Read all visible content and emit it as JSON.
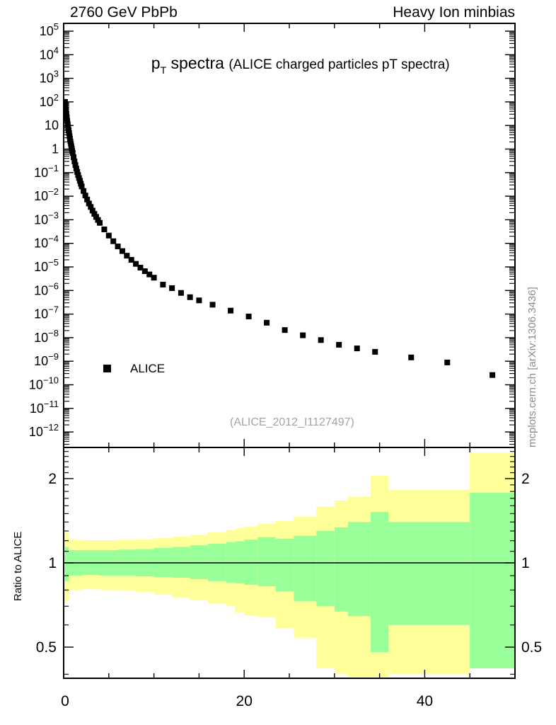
{
  "header": {
    "left": "2760 GeV PbPb",
    "right": "Heavy Ion minbias"
  },
  "title": {
    "p": "p",
    "sub": "T",
    "main": " spectra ",
    "detail": "(ALICE charged particles pT spectra)"
  },
  "legend": {
    "label": "ALICE",
    "marker": "filled-square",
    "marker_color": "#000000"
  },
  "watermark": "(ALICE_2012_I1127497)",
  "side_credit": "mcplots.cern.ch [arXiv:1306.3436]",
  "colors": {
    "outer_band": "#ffff99",
    "inner_band": "#99ff99",
    "marker": "#000000",
    "axis": "#000000",
    "watermark": "#a3a3a3",
    "credit": "#8c8c8c"
  },
  "chart_data": [
    {
      "type": "scatter",
      "panel": "spectrum",
      "title": "p_T spectra (ALICE charged particles pT spectra)",
      "x_axis": {
        "scale": "linear",
        "min": 0,
        "max": 50,
        "major_ticks": [
          0,
          20,
          40
        ],
        "minor_step": 5,
        "tick_labels": [
          "0",
          "20",
          "40"
        ]
      },
      "y_axis": {
        "scale": "log",
        "min": 2.2e-13,
        "max": 210000.0,
        "label_exponents": [
          5,
          4,
          3,
          2,
          1,
          0,
          -1,
          -2,
          -3,
          -4,
          -5,
          -6,
          -7,
          -8,
          -9,
          -10,
          -11,
          -12
        ]
      },
      "grid": false,
      "legend_position": "left-middle",
      "series": [
        {
          "name": "ALICE",
          "marker": "filled-square",
          "color": "#000000",
          "points": [
            [
              0.15,
              100
            ],
            [
              0.2,
              66
            ],
            [
              0.25,
              45
            ],
            [
              0.3,
              31
            ],
            [
              0.35,
              22
            ],
            [
              0.4,
              15.5
            ],
            [
              0.45,
              11.2
            ],
            [
              0.5,
              8.3
            ],
            [
              0.55,
              6.2
            ],
            [
              0.6,
              4.7
            ],
            [
              0.65,
              3.5
            ],
            [
              0.7,
              2.75
            ],
            [
              0.75,
              2.1
            ],
            [
              0.8,
              1.66
            ],
            [
              0.85,
              1.3
            ],
            [
              0.9,
              1.05
            ],
            [
              0.95,
              0.83
            ],
            [
              1.0,
              0.68
            ],
            [
              1.1,
              0.45
            ],
            [
              1.2,
              0.3
            ],
            [
              1.3,
              0.21
            ],
            [
              1.4,
              0.148
            ],
            [
              1.5,
              0.107
            ],
            [
              1.6,
              0.079
            ],
            [
              1.7,
              0.059
            ],
            [
              1.8,
              0.045
            ],
            [
              1.9,
              0.034
            ],
            [
              2.0,
              0.026
            ],
            [
              2.2,
              0.0166
            ],
            [
              2.4,
              0.0107
            ],
            [
              2.6,
              0.0072
            ],
            [
              2.8,
              0.0049
            ],
            [
              3.0,
              0.0035
            ],
            [
              3.2,
              0.00245
            ],
            [
              3.4,
              0.00178
            ],
            [
              3.6,
              0.00132
            ],
            [
              3.8,
              0.00098
            ],
            [
              4.0,
              0.00074
            ],
            [
              4.5,
              0.00039
            ],
            [
              5.0,
              0.000214
            ],
            [
              5.5,
              0.000123
            ],
            [
              6.0,
              7.4e-05
            ],
            [
              6.5,
              4.7e-05
            ],
            [
              7.0,
              3e-05
            ],
            [
              7.5,
              2e-05
            ],
            [
              8.0,
              1.35e-05
            ],
            [
              8.5,
              9.3e-06
            ],
            [
              9.0,
              6.6e-06
            ],
            [
              9.5,
              4.8e-06
            ],
            [
              10.0,
              3.5e-06
            ],
            [
              11.0,
              1.78e-06
            ],
            [
              12.0,
              1.26e-06
            ],
            [
              13.0,
              7.9e-07
            ],
            [
              14.0,
              5.2e-07
            ],
            [
              15.0,
              3.8e-07
            ],
            [
              16.5,
              2.5e-07
            ],
            [
              18.5,
              1.4e-07
            ],
            [
              20.5,
              7.9e-08
            ],
            [
              22.5,
              4.3e-08
            ],
            [
              24.5,
              2.1e-08
            ],
            [
              26.5,
              1.26e-08
            ],
            [
              28.5,
              7.9e-09
            ],
            [
              30.5,
              5e-09
            ],
            [
              32.5,
              3.5e-09
            ],
            [
              34.5,
              2.5e-09
            ],
            [
              38.5,
              1.45e-09
            ],
            [
              42.5,
              8.9e-10
            ],
            [
              47.5,
              2.6e-10
            ]
          ]
        }
      ]
    },
    {
      "type": "area",
      "panel": "ratio",
      "ylabel": "Ratio to ALICE",
      "x_axis": {
        "scale": "linear",
        "min": 0,
        "max": 50,
        "major_ticks": [
          0,
          20,
          40
        ],
        "minor_step": 5,
        "tick_labels": [
          "0",
          "20",
          "40"
        ]
      },
      "y_axis": {
        "scale": "log",
        "min": 0.387,
        "max": 2.58,
        "major_ticks": [
          0.5,
          1,
          2
        ],
        "minor_ticks": [
          0.4,
          0.6,
          0.7,
          0.8,
          0.9,
          1.1,
          1.2,
          1.3,
          1.4,
          1.5,
          1.6,
          1.7,
          1.8,
          1.9,
          2.1,
          2.2,
          2.3,
          2.4,
          2.5
        ],
        "tick_labels": [
          "0.5",
          "1",
          "2"
        ]
      },
      "reference_line": 1,
      "bands": {
        "outer_name": "total-envelope",
        "outer_color": "#ffff99",
        "inner_name": "stat-envelope",
        "inner_color": "#99ff99",
        "bins": [
          {
            "x": [
              0.15,
              0.6
            ],
            "yellow": [
              0.73,
              1.28
            ],
            "green": [
              0.86,
              1.14
            ]
          },
          {
            "x": [
              0.6,
              2
            ],
            "yellow": [
              0.8,
              1.21
            ],
            "green": [
              0.9,
              1.11
            ]
          },
          {
            "x": [
              2,
              4
            ],
            "yellow": [
              0.805,
              1.205
            ],
            "green": [
              0.905,
              1.11
            ]
          },
          {
            "x": [
              4,
              6
            ],
            "yellow": [
              0.8,
              1.205
            ],
            "green": [
              0.9,
              1.11
            ]
          },
          {
            "x": [
              6,
              8
            ],
            "yellow": [
              0.795,
              1.21
            ],
            "green": [
              0.9,
              1.115
            ]
          },
          {
            "x": [
              8,
              10
            ],
            "yellow": [
              0.785,
              1.215
            ],
            "green": [
              0.895,
              1.12
            ]
          },
          {
            "x": [
              10,
              12
            ],
            "yellow": [
              0.77,
              1.225
            ],
            "green": [
              0.89,
              1.13
            ]
          },
          {
            "x": [
              12,
              14
            ],
            "yellow": [
              0.75,
              1.24
            ],
            "green": [
              0.885,
              1.14
            ]
          },
          {
            "x": [
              14,
              16
            ],
            "yellow": [
              0.735,
              1.26
            ],
            "green": [
              0.875,
              1.155
            ]
          },
          {
            "x": [
              16,
              18
            ],
            "yellow": [
              0.715,
              1.285
            ],
            "green": [
              0.86,
              1.17
            ]
          },
          {
            "x": [
              18,
              19
            ],
            "yellow": [
              0.7,
              1.31
            ],
            "green": [
              0.85,
              1.185
            ]
          },
          {
            "x": [
              19,
              20
            ],
            "yellow": [
              0.665,
              1.33
            ],
            "green": [
              0.845,
              1.195
            ]
          },
          {
            "x": [
              20,
              21.5
            ],
            "yellow": [
              0.65,
              1.345
            ],
            "green": [
              0.835,
              1.21
            ]
          },
          {
            "x": [
              21.5,
              23.5
            ],
            "yellow": [
              0.64,
              1.38
            ],
            "green": [
              0.825,
              1.235
            ]
          },
          {
            "x": [
              23.5,
              25.5
            ],
            "yellow": [
              0.585,
              1.41
            ],
            "green": [
              0.79,
              1.22
            ]
          },
          {
            "x": [
              25.5,
              28
            ],
            "yellow": [
              0.54,
              1.46
            ],
            "green": [
              0.73,
              1.25
            ]
          },
          {
            "x": [
              28,
              30
            ],
            "yellow": [
              0.42,
              1.59
            ],
            "green": [
              0.7,
              1.3
            ]
          },
          {
            "x": [
              30,
              31.5
            ],
            "yellow": [
              0.4,
              1.67
            ],
            "green": [
              0.67,
              1.34
            ]
          },
          {
            "x": [
              31.5,
              34
            ],
            "yellow": [
              0.39,
              1.72
            ],
            "green": [
              0.645,
              1.4
            ]
          },
          {
            "x": [
              34,
              36
            ],
            "yellow": [
              0.39,
              2.05
            ],
            "green": [
              0.48,
              1.52
            ]
          },
          {
            "x": [
              36,
              45
            ],
            "yellow": [
              0.4,
              1.82
            ],
            "green": [
              0.6,
              1.4
            ]
          },
          {
            "x": [
              45,
              50
            ],
            "yellow": [
              0.42,
              2.47
            ],
            "green": [
              0.42,
              1.78
            ]
          }
        ]
      }
    }
  ]
}
